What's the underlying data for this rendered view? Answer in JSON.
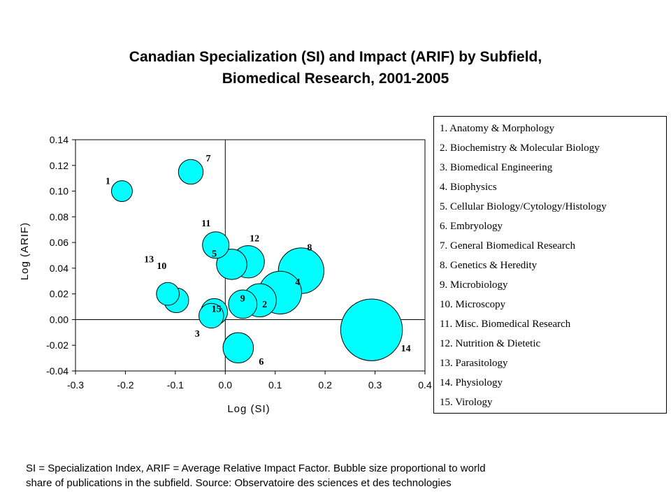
{
  "chart_data": {
    "type": "scatter",
    "title_lines": [
      "Canadian Specialization (SI) and Impact (ARIF) by Subfield,",
      "Biomedical Research, 2001-2005"
    ],
    "xlabel": "Log (SI)",
    "ylabel": "Log (ARIF)",
    "xlim": [
      -0.3,
      0.4
    ],
    "ylim": [
      -0.04,
      0.14
    ],
    "xticks": [
      -0.3,
      -0.2,
      -0.1,
      0.0,
      0.1,
      0.2,
      0.3,
      0.4
    ],
    "xtick_labels": [
      "-0.3",
      "-0.2",
      "-0.1",
      "0.0",
      "0.1",
      "0.2",
      "0.3",
      "0.4"
    ],
    "yticks": [
      -0.04,
      -0.02,
      0.0,
      0.02,
      0.04,
      0.06,
      0.08,
      0.1,
      0.12,
      0.14
    ],
    "ytick_labels": [
      "-0.04",
      "-0.02",
      "0.00",
      "0.02",
      "0.04",
      "0.06",
      "0.08",
      "0.10",
      "0.12",
      "0.14"
    ],
    "grid": false,
    "bubble_color": "#00FFFF",
    "points": [
      {
        "label": "1",
        "x": -0.207,
        "y": 0.1,
        "size": 2.2
      },
      {
        "label": "2",
        "x": 0.069,
        "y": 0.015,
        "size": 3.5
      },
      {
        "label": "3",
        "x": -0.028,
        "y": 0.003,
        "size": 2.6
      },
      {
        "label": "4",
        "x": 0.11,
        "y": 0.021,
        "size": 4.5
      },
      {
        "label": "5",
        "x": 0.013,
        "y": 0.043,
        "size": 3.2
      },
      {
        "label": "6",
        "x": 0.026,
        "y": -0.022,
        "size": 3.2
      },
      {
        "label": "7",
        "x": -0.069,
        "y": 0.115,
        "size": 2.6
      },
      {
        "label": "8",
        "x": 0.152,
        "y": 0.038,
        "size": 4.8
      },
      {
        "label": "9",
        "x": 0.035,
        "y": 0.012,
        "size": 3.0
      },
      {
        "label": "10",
        "x": -0.098,
        "y": 0.015,
        "size": 2.6
      },
      {
        "label": "11",
        "x": -0.019,
        "y": 0.058,
        "size": 2.8
      },
      {
        "label": "12",
        "x": 0.046,
        "y": 0.045,
        "size": 3.4
      },
      {
        "label": "13",
        "x": -0.115,
        "y": 0.02,
        "size": 2.4
      },
      {
        "label": "14",
        "x": 0.293,
        "y": -0.008,
        "size": 6.5
      },
      {
        "label": "15",
        "x": -0.022,
        "y": 0.006,
        "size": 2.8
      }
    ],
    "legend_location": "right"
  },
  "legend_items": [
    "1. Anatomy & Morphology",
    "2. Biochemistry & Molecular Biology",
    "3. Biomedical Engineering",
    "4. Biophysics",
    "5. Cellular Biology/Cytology/Histology",
    "6. Embryology",
    "7. General Biomedical Research",
    "8. Genetics & Heredity",
    "9. Microbiology",
    "10. Microscopy",
    "11. Misc. Biomedical Research",
    "12. Nutrition & Dietetic",
    "13. Parasitology",
    "14. Physiology",
    "15. Virology"
  ],
  "footnote_lines": [
    "SI = Specialization Index, ARIF = Average Relative Impact Factor. Bubble size proportional to world",
    "share of publications in the subfield. Source: Observatoire des sciences et des technologies"
  ]
}
